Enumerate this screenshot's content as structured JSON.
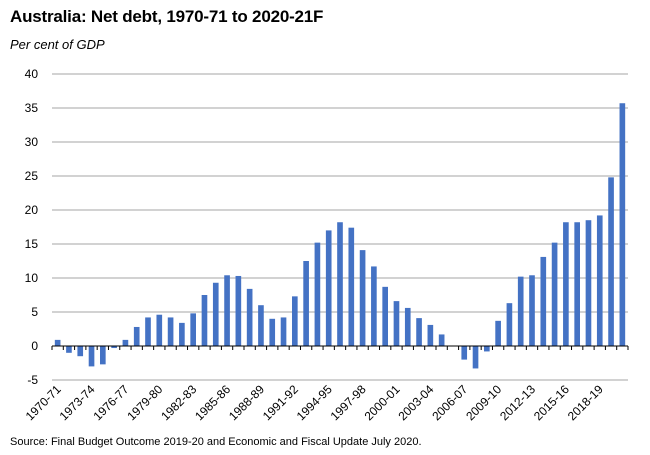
{
  "title": "Australia: Net debt, 1970-71 to 2020-21F",
  "subtitle": "Per cent of GDP",
  "source": "Source: Final Budget Outcome 2019-20 and Economic and Fiscal Update July 2020.",
  "colors": {
    "bar": "#4472C4",
    "grid": "#a6a6a6",
    "axis": "#000000"
  },
  "chart_data": {
    "type": "bar",
    "title": "Australia: Net debt, 1970-71 to 2020-21F",
    "ylabel": "Per cent of GDP",
    "xlabel": "",
    "ylim": [
      -5,
      40
    ],
    "yticks": [
      -5,
      0,
      5,
      10,
      15,
      20,
      25,
      30,
      35,
      40
    ],
    "grid": true,
    "categories": [
      "1970-71",
      "1971-72",
      "1972-73",
      "1973-74",
      "1974-75",
      "1975-76",
      "1976-77",
      "1977-78",
      "1978-79",
      "1979-80",
      "1980-81",
      "1981-82",
      "1982-83",
      "1983-84",
      "1984-85",
      "1985-86",
      "1986-87",
      "1987-88",
      "1988-89",
      "1989-90",
      "1990-91",
      "1991-92",
      "1992-93",
      "1993-94",
      "1994-95",
      "1995-96",
      "1996-97",
      "1997-98",
      "1998-99",
      "1999-00",
      "2000-01",
      "2001-02",
      "2002-03",
      "2003-04",
      "2004-05",
      "2005-06",
      "2006-07",
      "2007-08",
      "2008-09",
      "2009-10",
      "2010-11",
      "2011-12",
      "2012-13",
      "2013-14",
      "2014-15",
      "2015-16",
      "2016-17",
      "2017-18",
      "2018-19",
      "2019-20",
      "2020-21F"
    ],
    "tick_labels": [
      "1970-71",
      "1973-74",
      "1976-77",
      "1979-80",
      "1982-83",
      "1985-86",
      "1988-89",
      "1991-92",
      "1994-95",
      "1997-98",
      "2000-01",
      "2003-04",
      "2006-07",
      "2009-10",
      "2012-13",
      "2015-16",
      "2018-19"
    ],
    "values": [
      0.9,
      -1.0,
      -1.5,
      -3.0,
      -2.7,
      -0.3,
      0.9,
      2.8,
      4.2,
      4.6,
      4.2,
      3.4,
      4.8,
      7.5,
      9.3,
      10.4,
      10.3,
      8.4,
      6.0,
      4.0,
      4.2,
      7.3,
      12.5,
      15.2,
      17.0,
      18.2,
      17.4,
      14.1,
      11.7,
      8.7,
      6.6,
      5.6,
      4.1,
      3.1,
      1.7,
      0.0,
      -2.0,
      -3.3,
      -0.8,
      3.7,
      6.3,
      10.2,
      10.4,
      13.1,
      15.2,
      18.2,
      18.2,
      18.5,
      19.2,
      24.8,
      35.7
    ]
  }
}
